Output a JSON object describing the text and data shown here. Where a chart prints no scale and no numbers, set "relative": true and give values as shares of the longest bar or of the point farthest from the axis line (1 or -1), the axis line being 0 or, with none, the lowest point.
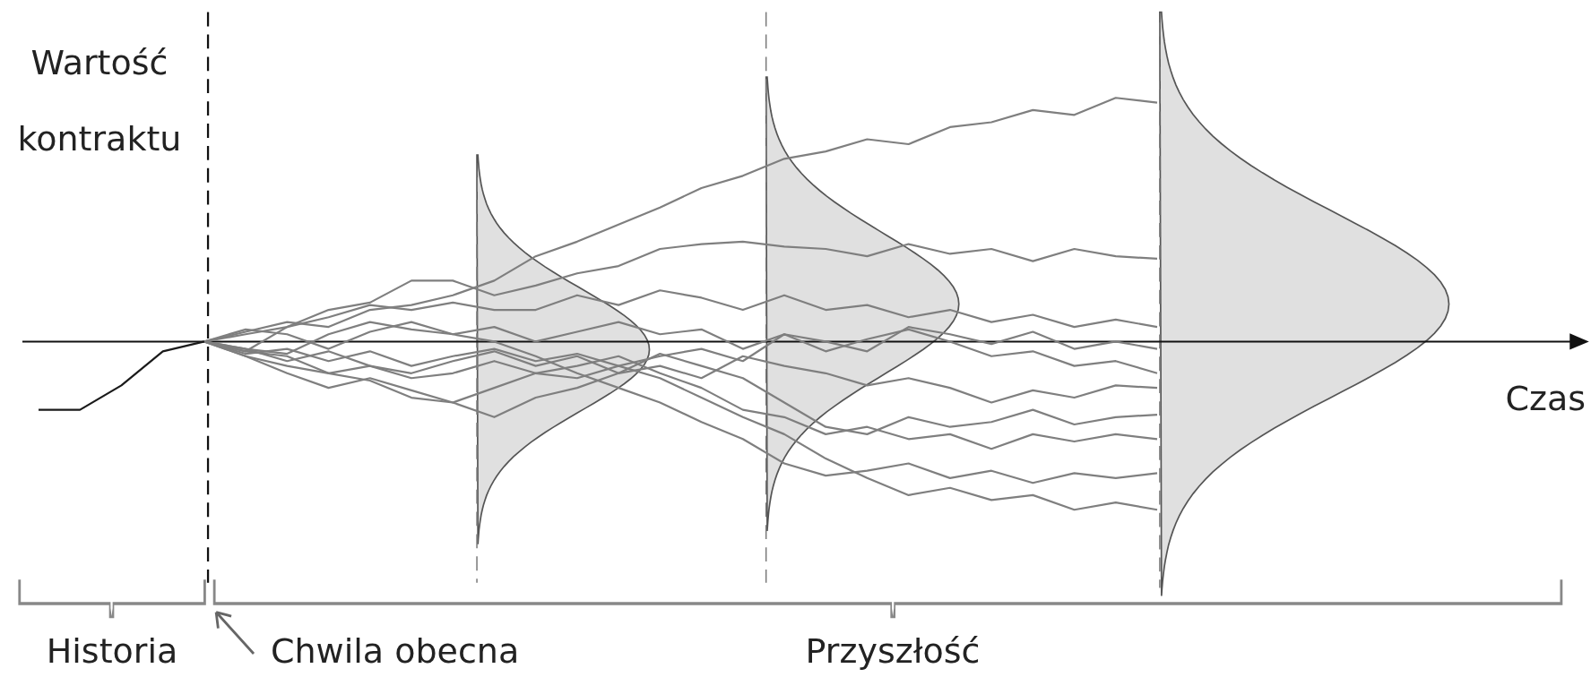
{
  "chart_data": {
    "type": "line",
    "relative": true,
    "ylabel": "Wartość kontraktu",
    "tick_labels": false,
    "annotations": [
      "Historia",
      "Chwila obecna",
      "Przyszłość",
      "Czas"
    ],
    "categories": [
      null,
      null,
      null,
      null,
      null,
      null,
      null,
      null,
      null,
      null,
      null,
      null,
      null,
      null,
      null,
      null,
      null,
      null,
      null,
      null,
      null,
      null,
      null,
      null,
      null,
      null,
      null,
      null
    ],
    "series": [
      {
        "color": "#1a1a1a",
        "values": [
          -0.28,
          -0.28,
          -0.18,
          -0.04,
          0,
          null,
          null,
          null,
          null,
          null,
          null,
          null,
          null,
          null,
          null,
          null,
          null,
          null,
          null,
          null,
          null,
          null,
          null,
          null,
          null,
          null,
          null,
          null
        ]
      },
      {
        "color": "#7f7f7f",
        "values": [
          null,
          null,
          null,
          null,
          0,
          0.04,
          0.08,
          0.06,
          0.13,
          0.15,
          0.19,
          0.25,
          0.35,
          0.41,
          0.48,
          0.55,
          0.63,
          0.68,
          0.75,
          0.78,
          0.83,
          0.81,
          0.88,
          0.9,
          0.95,
          0.93,
          1,
          0.98
        ]
      },
      {
        "color": "#7f7f7f",
        "values": [
          null,
          null,
          null,
          null,
          0,
          0.03,
          0.06,
          0.13,
          0.16,
          0.25,
          0.25,
          0.19,
          0.23,
          0.28,
          0.31,
          0.38,
          0.4,
          0.41,
          0.39,
          0.38,
          0.35,
          0.4,
          0.36,
          0.38,
          0.33,
          0.38,
          0.35,
          0.34
        ]
      },
      {
        "color": "#7f7f7f",
        "values": [
          null,
          null,
          null,
          null,
          0,
          -0.04,
          0.06,
          0.1,
          0.15,
          0.13,
          0.16,
          0.13,
          0.13,
          0.19,
          0.15,
          0.21,
          0.18,
          0.13,
          0.19,
          0.13,
          0.15,
          0.1,
          0.13,
          0.08,
          0.11,
          0.06,
          0.09,
          0.06
        ]
      },
      {
        "color": "#7f7f7f",
        "values": [
          null,
          null,
          null,
          null,
          0,
          0.05,
          0.03,
          -0.03,
          0.04,
          0.08,
          0.03,
          0.06,
          0,
          0.04,
          0.08,
          0.03,
          0.05,
          -0.03,
          0.03,
          0,
          -0.04,
          0.06,
          0.03,
          -0.01,
          0.04,
          -0.03,
          0,
          -0.03
        ]
      },
      {
        "color": "#7f7f7f",
        "values": [
          null,
          null,
          null,
          null,
          0,
          -0.05,
          -0.03,
          -0.08,
          -0.04,
          -0.1,
          -0.06,
          -0.03,
          -0.08,
          -0.05,
          -0.1,
          -0.06,
          -0.03,
          -0.08,
          0.03,
          -0.04,
          0.01,
          0.05,
          0,
          -0.06,
          -0.04,
          -0.1,
          -0.08,
          -0.13
        ]
      },
      {
        "color": "#7f7f7f",
        "values": [
          null,
          null,
          null,
          null,
          0,
          -0.06,
          -0.1,
          -0.13,
          -0.16,
          -0.23,
          -0.25,
          -0.31,
          -0.23,
          -0.19,
          -0.13,
          -0.1,
          -0.15,
          -0.06,
          -0.1,
          -0.13,
          -0.18,
          -0.15,
          -0.19,
          -0.25,
          -0.2,
          -0.23,
          -0.18,
          -0.19
        ]
      },
      {
        "color": "#7f7f7f",
        "values": [
          null,
          null,
          null,
          null,
          0,
          -0.03,
          -0.08,
          -0.04,
          -0.1,
          -0.13,
          -0.08,
          -0.04,
          -0.1,
          -0.06,
          -0.13,
          -0.05,
          -0.1,
          -0.15,
          -0.25,
          -0.35,
          -0.38,
          -0.31,
          -0.35,
          -0.33,
          -0.28,
          -0.34,
          -0.31,
          -0.3
        ]
      },
      {
        "color": "#7f7f7f",
        "values": [
          null,
          null,
          null,
          null,
          0,
          -0.04,
          -0.06,
          -0.13,
          -0.1,
          -0.15,
          -0.13,
          -0.08,
          -0.13,
          -0.1,
          -0.06,
          -0.13,
          -0.19,
          -0.28,
          -0.31,
          -0.38,
          -0.35,
          -0.4,
          -0.38,
          -0.44,
          -0.38,
          -0.41,
          -0.38,
          -0.4
        ]
      },
      {
        "color": "#7f7f7f",
        "values": [
          null,
          null,
          null,
          null,
          0,
          -0.03,
          -0.05,
          0.03,
          0.08,
          0.05,
          0.03,
          0,
          -0.06,
          -0.13,
          -0.19,
          -0.25,
          -0.33,
          -0.4,
          -0.5,
          -0.55,
          -0.53,
          -0.5,
          -0.56,
          -0.53,
          -0.58,
          -0.54,
          -0.56,
          -0.54
        ]
      },
      {
        "color": "#7f7f7f",
        "values": [
          null,
          null,
          null,
          null,
          0,
          -0.06,
          -0.13,
          -0.19,
          -0.15,
          -0.2,
          -0.25,
          -0.19,
          -0.13,
          -0.15,
          -0.1,
          -0.15,
          -0.23,
          -0.31,
          -0.38,
          -0.48,
          -0.56,
          -0.63,
          -0.6,
          -0.65,
          -0.63,
          -0.69,
          -0.66,
          -0.69
        ]
      }
    ]
  }
}
